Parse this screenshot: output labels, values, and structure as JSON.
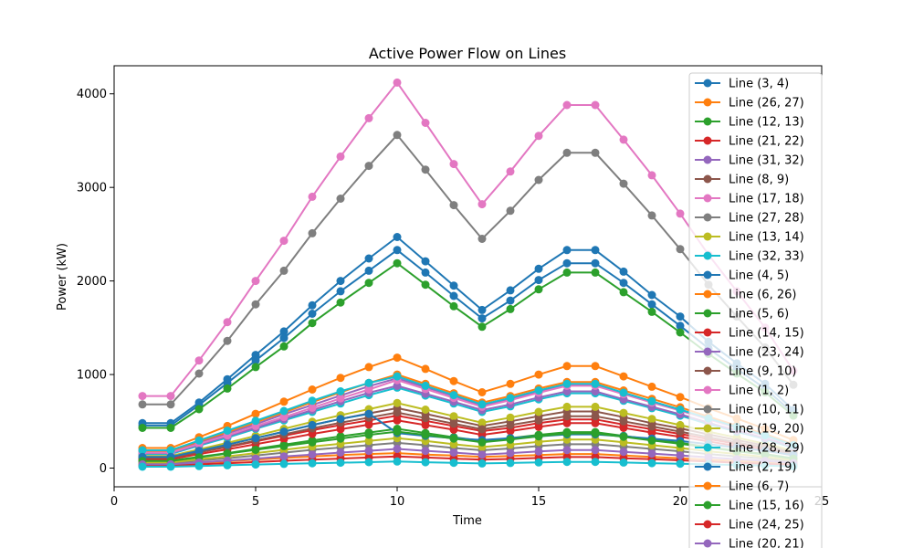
{
  "chart_data": {
    "type": "line",
    "title": "Active Power Flow on Lines",
    "xlabel": "Time",
    "ylabel": "Power (kW)",
    "xlim": [
      0,
      25
    ],
    "ylim": [
      -200,
      4300
    ],
    "xticks": [
      0,
      5,
      10,
      15,
      20,
      25
    ],
    "yticks": [
      0,
      1000,
      2000,
      3000,
      4000
    ],
    "grid": false,
    "legend_position": "right",
    "x": [
      1,
      2,
      3,
      4,
      5,
      6,
      7,
      8,
      9,
      10,
      11,
      12,
      13,
      14,
      15,
      16,
      17,
      18,
      19,
      20,
      21,
      22,
      23,
      24
    ],
    "series": [
      {
        "name": "Line (3, 4)",
        "color": "#1f77b4",
        "values": [
          480,
          480,
          700,
          950,
          1210,
          1460,
          1740,
          2000,
          2240,
          2470,
          2210,
          1950,
          1690,
          1900,
          2130,
          2330,
          2330,
          2100,
          1850,
          1620,
          1350,
          1120,
          900,
          620
        ]
      },
      {
        "name": "Line (26, 27)",
        "color": "#ff7f0e",
        "values": [
          215,
          215,
          330,
          450,
          580,
          710,
          840,
          965,
          1080,
          1180,
          1060,
          930,
          810,
          900,
          1000,
          1090,
          1090,
          980,
          870,
          760,
          640,
          530,
          420,
          300
        ]
      },
      {
        "name": "Line (12, 13)",
        "color": "#2ca02c",
        "values": [
          80,
          80,
          120,
          160,
          205,
          250,
          295,
          340,
          380,
          420,
          375,
          330,
          290,
          320,
          355,
          385,
          385,
          345,
          305,
          270,
          225,
          185,
          150,
          105
        ]
      },
      {
        "name": "Line (21, 22)",
        "color": "#d62728",
        "values": [
          110,
          110,
          170,
          225,
          285,
          345,
          405,
          460,
          510,
          560,
          505,
          450,
          395,
          430,
          480,
          520,
          520,
          465,
          415,
          365,
          310,
          260,
          210,
          150
        ]
      },
      {
        "name": "Line (31, 32)",
        "color": "#9467bd",
        "values": [
          175,
          175,
          270,
          370,
          470,
          575,
          675,
          775,
          875,
          960,
          865,
          770,
          670,
          740,
          820,
          890,
          890,
          800,
          710,
          625,
          530,
          440,
          350,
          245
        ]
      },
      {
        "name": "Line (8, 9)",
        "color": "#8c564b",
        "values": [
          120,
          120,
          190,
          250,
          320,
          390,
          460,
          525,
          585,
          640,
          580,
          515,
          450,
          500,
          555,
          605,
          605,
          545,
          480,
          425,
          360,
          300,
          240,
          170
        ]
      },
      {
        "name": "Line (17, 18)",
        "color": "#e377c2",
        "values": [
          770,
          770,
          1150,
          1560,
          2000,
          2430,
          2900,
          3330,
          3740,
          4120,
          3690,
          3250,
          2820,
          3170,
          3550,
          3880,
          3880,
          3510,
          3130,
          2720,
          2280,
          1890,
          1500,
          1040
        ]
      },
      {
        "name": "Line (27, 28)",
        "color": "#7f7f7f",
        "values": [
          680,
          680,
          1010,
          1360,
          1750,
          2110,
          2510,
          2880,
          3230,
          3560,
          3190,
          2810,
          2450,
          2750,
          3080,
          3370,
          3370,
          3040,
          2700,
          2340,
          1960,
          1620,
          1290,
          890
        ]
      },
      {
        "name": "Line (13, 14)",
        "color": "#bcbd22",
        "values": [
          130,
          130,
          200,
          270,
          345,
          420,
          495,
          565,
          630,
          695,
          625,
          555,
          485,
          540,
          600,
          655,
          655,
          590,
          525,
          460,
          390,
          325,
          260,
          185
        ]
      },
      {
        "name": "Line (32, 33)",
        "color": "#17becf",
        "values": [
          150,
          150,
          240,
          325,
          420,
          510,
          600,
          690,
          780,
          860,
          775,
          690,
          600,
          660,
          735,
          800,
          800,
          720,
          640,
          560,
          470,
          390,
          310,
          215
        ]
      },
      {
        "name": "Line (4, 5)",
        "color": "#1f77b4",
        "values": [
          455,
          455,
          675,
          910,
          1150,
          1390,
          1650,
          1890,
          2110,
          2330,
          2090,
          1840,
          1600,
          1790,
          2010,
          2190,
          2190,
          1980,
          1750,
          1520,
          1280,
          1060,
          850,
          585
        ]
      },
      {
        "name": "Line (6, 26)",
        "color": "#ff7f0e",
        "values": [
          185,
          185,
          285,
          385,
          490,
          595,
          705,
          810,
          910,
          1000,
          900,
          800,
          700,
          770,
          850,
          920,
          920,
          830,
          740,
          650,
          550,
          455,
          365,
          255
        ]
      },
      {
        "name": "Line (5, 6)",
        "color": "#2ca02c",
        "values": [
          430,
          430,
          630,
          850,
          1080,
          1300,
          1550,
          1770,
          1980,
          2190,
          1960,
          1730,
          1510,
          1700,
          1910,
          2090,
          2090,
          1880,
          1670,
          1450,
          1220,
          1010,
          810,
          560
        ]
      },
      {
        "name": "Line (14, 15)",
        "color": "#d62728",
        "values": [
          95,
          95,
          150,
          200,
          255,
          310,
          365,
          415,
          465,
          510,
          460,
          410,
          355,
          395,
          440,
          480,
          480,
          430,
          380,
          335,
          285,
          235,
          190,
          135
        ]
      },
      {
        "name": "Line (23, 24)",
        "color": "#9467bd",
        "values": [
          160,
          160,
          250,
          340,
          430,
          525,
          620,
          715,
          805,
          880,
          795,
          710,
          620,
          680,
          755,
          820,
          820,
          735,
          655,
          575,
          485,
          400,
          320,
          225
        ]
      },
      {
        "name": "Line (9, 10)",
        "color": "#8c564b",
        "values": [
          110,
          110,
          170,
          230,
          295,
          360,
          425,
          485,
          540,
          595,
          535,
          475,
          415,
          460,
          510,
          555,
          555,
          500,
          445,
          390,
          330,
          275,
          220,
          155
        ]
      },
      {
        "name": "Line (1, 2)",
        "color": "#e377c2",
        "values": [
          165,
          165,
          260,
          350,
          450,
          545,
          645,
          745,
          840,
          940,
          845,
          750,
          655,
          725,
          805,
          880,
          880,
          790,
          700,
          615,
          520,
          430,
          345,
          240
        ]
      },
      {
        "name": "Line (10, 11)",
        "color": "#7f7f7f",
        "values": [
          50,
          50,
          80,
          105,
          135,
          165,
          195,
          220,
          245,
          270,
          245,
          215,
          190,
          210,
          235,
          255,
          255,
          230,
          205,
          180,
          150,
          125,
          100,
          70
        ]
      },
      {
        "name": "Line (19, 20)",
        "color": "#bcbd22",
        "values": [
          60,
          60,
          95,
          125,
          160,
          195,
          230,
          260,
          290,
          320,
          290,
          255,
          225,
          250,
          280,
          305,
          305,
          275,
          245,
          215,
          180,
          150,
          120,
          85
        ]
      },
      {
        "name": "Line (28, 29)",
        "color": "#17becf",
        "values": [
          190,
          190,
          295,
          400,
          505,
          610,
          720,
          820,
          910,
          980,
          880,
          780,
          680,
          750,
          830,
          900,
          900,
          805,
          715,
          625,
          530,
          440,
          350,
          245
        ]
      },
      {
        "name": "Line (2, 19)",
        "color": "#1f77b4",
        "values": [
          120,
          120,
          185,
          250,
          320,
          390,
          460,
          525,
          580,
          375,
          345,
          320,
          300,
          320,
          340,
          360,
          360,
          340,
          315,
          290,
          255,
          220,
          185,
          140
        ]
      },
      {
        "name": "Line (6, 7)",
        "color": "#ff7f0e",
        "values": [
          35,
          35,
          55,
          72,
          90,
          108,
          125,
          140,
          150,
          160,
          145,
          135,
          120,
          130,
          140,
          150,
          150,
          135,
          120,
          105,
          90,
          75,
          60,
          45
        ]
      },
      {
        "name": "Line (15, 16)",
        "color": "#2ca02c",
        "values": [
          75,
          75,
          115,
          155,
          195,
          235,
          275,
          315,
          355,
          390,
          355,
          315,
          275,
          305,
          340,
          370,
          370,
          335,
          295,
          260,
          220,
          180,
          145,
          100
        ]
      },
      {
        "name": "Line (24, 25)",
        "color": "#d62728",
        "values": [
          25,
          25,
          40,
          52,
          65,
          78,
          90,
          102,
          113,
          125,
          113,
          102,
          90,
          98,
          108,
          118,
          118,
          106,
          95,
          83,
          70,
          58,
          46,
          32
        ]
      },
      {
        "name": "Line (20, 21)",
        "color": "#9467bd",
        "values": [
          40,
          40,
          60,
          80,
          102,
          124,
          145,
          166,
          185,
          205,
          185,
          166,
          145,
          160,
          178,
          193,
          193,
          174,
          155,
          136,
          115,
          96,
          77,
          54
        ]
      },
      {
        "name": "",
        "color": "#17becf",
        "values": [
          15,
          15,
          22,
          30,
          38,
          45,
          52,
          58,
          64,
          70,
          63,
          57,
          50,
          55,
          61,
          66,
          66,
          60,
          53,
          47,
          40,
          33,
          27,
          19
        ]
      }
    ]
  }
}
